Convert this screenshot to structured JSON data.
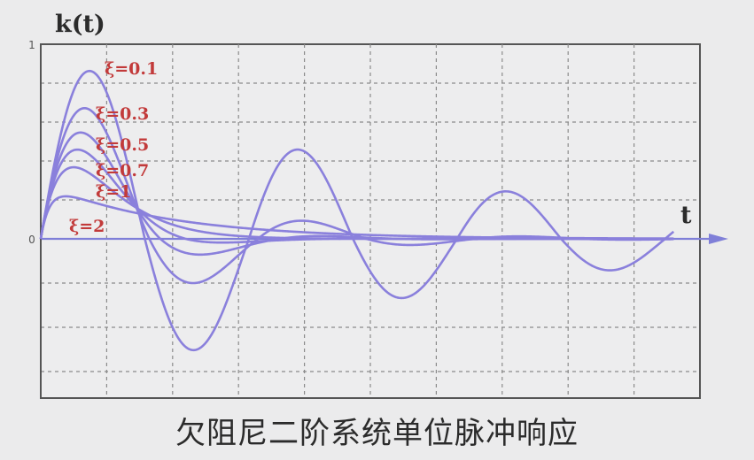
{
  "caption": "欠阻尼二阶系统单位脉冲响应",
  "colors": {
    "curve": "#8a80dc",
    "label": "#c23a3a",
    "axis": "#7f7fd8",
    "grid": "#8a8a8a",
    "frame": "#555555",
    "text": "#2b2b2b"
  },
  "chart_data": {
    "type": "line",
    "title": "",
    "ylabel": "k(t)",
    "xlabel": "t",
    "y_ticks": [
      {
        "value": 1,
        "label": "1"
      },
      {
        "value": 0,
        "label": "0"
      }
    ],
    "xlim": [
      0,
      10
    ],
    "ylim": [
      -0.9,
      1
    ],
    "grid": true,
    "x_grid_lines": [
      1,
      2,
      3,
      4,
      5,
      6,
      7,
      8,
      9
    ],
    "y_grid_lines": [
      0.8,
      0.6,
      0.4,
      0.2,
      -0.25,
      -0.5,
      -0.75
    ],
    "wn": 2,
    "series": [
      {
        "name": "ξ=0.1",
        "zeta": 0.1
      },
      {
        "name": "ξ=0.3",
        "zeta": 0.3
      },
      {
        "name": "ξ=0.5",
        "zeta": 0.5
      },
      {
        "name": "ξ=0.7",
        "zeta": 0.7
      },
      {
        "name": "ξ=1",
        "zeta": 1
      },
      {
        "name": "ξ=2",
        "zeta": 2
      }
    ]
  }
}
